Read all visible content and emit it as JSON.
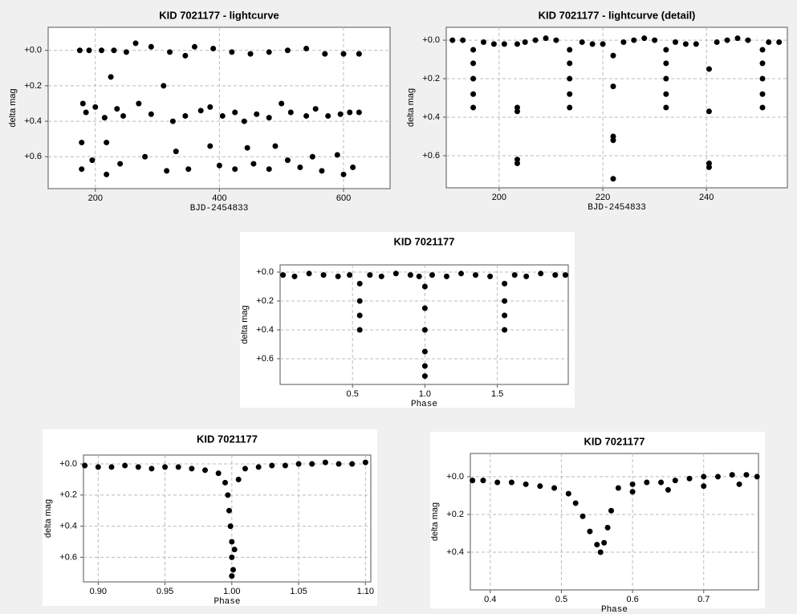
{
  "chart_data": [
    {
      "type": "scatter",
      "title": "KID 7021177 - lightcurve",
      "xlabel": "BJD-2454833",
      "ylabel": "delta mag",
      "color": "#000000",
      "grid": true,
      "yinvert": true,
      "xlim": [
        124,
        675
      ],
      "ylim": [
        -0.13,
        0.78
      ],
      "xticks": [
        200,
        400,
        600
      ],
      "yticks": [
        {
          "value": 0,
          "label": "+0.0"
        },
        {
          "value": 0.2,
          "label": "+0.2"
        },
        {
          "value": 0.4,
          "label": "+0.4"
        },
        {
          "value": 0.6,
          "label": "+0.6"
        }
      ],
      "x": [
        175,
        190,
        210,
        230,
        250,
        265,
        290,
        320,
        345,
        360,
        390,
        420,
        450,
        480,
        510,
        540,
        570,
        600,
        625,
        180,
        185,
        200,
        215,
        225,
        235,
        245,
        270,
        290,
        310,
        325,
        345,
        370,
        385,
        405,
        425,
        440,
        460,
        480,
        500,
        515,
        540,
        555,
        575,
        595,
        610,
        625,
        178,
        178,
        195,
        218,
        218,
        240,
        280,
        315,
        330,
        350,
        385,
        400,
        425,
        445,
        455,
        480,
        490,
        510,
        530,
        550,
        565,
        590,
        600,
        615
      ],
      "y": [
        0.0,
        0.0,
        0.0,
        0.0,
        0.01,
        -0.04,
        -0.02,
        0.01,
        0.03,
        -0.02,
        -0.01,
        0.01,
        0.02,
        0.01,
        0.0,
        -0.01,
        0.02,
        0.02,
        0.02,
        0.3,
        0.35,
        0.32,
        0.38,
        0.15,
        0.33,
        0.37,
        0.3,
        0.36,
        0.2,
        0.4,
        0.37,
        0.34,
        0.32,
        0.37,
        0.35,
        0.4,
        0.36,
        0.38,
        0.3,
        0.35,
        0.37,
        0.33,
        0.37,
        0.36,
        0.35,
        0.35,
        0.52,
        0.67,
        0.62,
        0.52,
        0.7,
        0.64,
        0.6,
        0.68,
        0.57,
        0.67,
        0.54,
        0.65,
        0.67,
        0.55,
        0.64,
        0.67,
        0.54,
        0.62,
        0.66,
        0.6,
        0.68,
        0.59,
        0.7,
        0.66
      ]
    },
    {
      "type": "scatter",
      "title": "KID 7021177 - lightcurve (detail)",
      "xlabel": "BJD-2454833",
      "ylabel": "delta mag",
      "color": "#000000",
      "grid": true,
      "yinvert": true,
      "xlim": [
        189.8,
        255.6
      ],
      "ylim": [
        -0.067,
        0.767
      ],
      "xticks": [
        200,
        220,
        240
      ],
      "yticks": [
        {
          "value": 0,
          "label": "+0.0"
        },
        {
          "value": 0.2,
          "label": "+0.2"
        },
        {
          "value": 0.4,
          "label": "+0.4"
        },
        {
          "value": 0.6,
          "label": "+0.6"
        }
      ],
      "x": [
        191,
        193,
        197,
        199,
        201,
        205,
        207,
        209,
        211,
        216,
        218,
        220,
        224,
        226,
        228,
        230,
        234,
        236,
        238,
        242,
        244,
        246,
        248,
        252,
        254,
        195,
        195,
        195,
        195,
        195,
        213.6,
        213.6,
        213.6,
        213.6,
        213.6,
        232.2,
        232.2,
        232.2,
        232.2,
        232.2,
        250.8,
        250.8,
        250.8,
        250.8,
        250.8,
        203.5,
        203.5,
        203.5,
        203.5,
        203.5,
        222,
        222,
        222,
        222,
        222,
        240.5,
        240.5,
        240.5,
        240.5
      ],
      "y": [
        0.0,
        0.0,
        0.01,
        0.02,
        0.02,
        0.01,
        0.0,
        -0.01,
        0.0,
        0.01,
        0.02,
        0.02,
        0.01,
        0.0,
        -0.01,
        0.0,
        0.01,
        0.02,
        0.02,
        0.01,
        0.0,
        -0.01,
        0.0,
        0.01,
        0.01,
        0.05,
        0.12,
        0.2,
        0.28,
        0.35,
        0.05,
        0.12,
        0.2,
        0.28,
        0.35,
        0.05,
        0.12,
        0.2,
        0.28,
        0.35,
        0.05,
        0.12,
        0.2,
        0.28,
        0.35,
        0.02,
        0.35,
        0.37,
        0.62,
        0.64,
        0.08,
        0.24,
        0.5,
        0.52,
        0.72,
        0.15,
        0.37,
        0.64,
        0.66
      ]
    },
    {
      "type": "scatter",
      "title": "KID 7021177",
      "xlabel": "Phase",
      "ylabel": "delta mag",
      "color": "#000000",
      "grid": true,
      "yinvert": true,
      "xlim": [
        0.0,
        1.99
      ],
      "ylim": [
        -0.05,
        0.778
      ],
      "xticks": [
        0.5,
        {
          "value": 1,
          "label": "1.0"
        },
        1.5
      ],
      "yticks": [
        {
          "value": 0,
          "label": "+0.0"
        },
        {
          "value": 0.2,
          "label": "+0.2"
        },
        {
          "value": 0.4,
          "label": "+0.4"
        },
        {
          "value": 0.6,
          "label": "+0.6"
        }
      ],
      "x": [
        0.02,
        0.1,
        0.2,
        0.3,
        0.4,
        0.48,
        0.62,
        0.7,
        0.8,
        0.9,
        0.96,
        1.05,
        1.15,
        1.25,
        1.35,
        1.45,
        1.62,
        1.7,
        1.8,
        1.9,
        1.97,
        0.55,
        0.55,
        0.55,
        0.55,
        1.0,
        1.0,
        1.0,
        1.0,
        1.0,
        1.0,
        1.55,
        1.55,
        1.55,
        1.55
      ],
      "y": [
        0.02,
        0.03,
        0.01,
        0.02,
        0.03,
        0.02,
        0.02,
        0.03,
        0.01,
        0.02,
        0.03,
        0.02,
        0.03,
        0.01,
        0.02,
        0.03,
        0.02,
        0.03,
        0.01,
        0.02,
        0.02,
        0.08,
        0.2,
        0.3,
        0.4,
        0.1,
        0.25,
        0.4,
        0.55,
        0.65,
        0.72,
        0.08,
        0.2,
        0.3,
        0.4
      ]
    },
    {
      "type": "scatter",
      "title": "KID 7021177",
      "xlabel": "Phase",
      "ylabel": "delta mag",
      "color": "#000000",
      "grid": true,
      "yinvert": true,
      "xlim": [
        0.889,
        1.104
      ],
      "ylim": [
        -0.057,
        0.758
      ],
      "xticks": [
        {
          "value": 0.9,
          "label": "0.90"
        },
        {
          "value": 0.95,
          "label": "0.95"
        },
        {
          "value": 1,
          "label": "1.00"
        },
        {
          "value": 1.05,
          "label": "1.05"
        },
        {
          "value": 1.1,
          "label": "1.10"
        }
      ],
      "yticks": [
        {
          "value": 0,
          "label": "+0.0"
        },
        {
          "value": 0.2,
          "label": "+0.2"
        },
        {
          "value": 0.4,
          "label": "+0.4"
        },
        {
          "value": 0.6,
          "label": "+0.6"
        }
      ],
      "x": [
        0.89,
        0.9,
        0.91,
        0.92,
        0.93,
        0.94,
        0.95,
        0.96,
        0.97,
        0.98,
        0.99,
        0.995,
        1.005,
        1.01,
        1.02,
        1.03,
        1.04,
        1.05,
        1.06,
        1.07,
        1.08,
        1.09,
        1.1,
        0.997,
        0.998,
        0.999,
        1.0,
        1.0,
        1.001,
        1.002,
        1.0
      ],
      "y": [
        0.01,
        0.02,
        0.02,
        0.01,
        0.02,
        0.03,
        0.02,
        0.02,
        0.03,
        0.04,
        0.06,
        0.12,
        0.1,
        0.03,
        0.02,
        0.01,
        0.01,
        0.0,
        0.0,
        -0.01,
        0.0,
        0.0,
        -0.01,
        0.2,
        0.3,
        0.4,
        0.5,
        0.6,
        0.68,
        0.55,
        0.72
      ]
    },
    {
      "type": "scatter",
      "title": "KID 7021177",
      "xlabel": "Phase",
      "ylabel": "delta mag",
      "color": "#000000",
      "grid": true,
      "yinvert": true,
      "xlim": [
        0.372,
        0.777
      ],
      "ylim": [
        -0.123,
        0.6
      ],
      "xticks": [
        0.4,
        0.5,
        0.6,
        0.7
      ],
      "yticks": [
        {
          "value": 0,
          "label": "+0.0"
        },
        {
          "value": 0.2,
          "label": "+0.2"
        },
        {
          "value": 0.4,
          "label": "+0.4"
        }
      ],
      "x": [
        0.375,
        0.39,
        0.41,
        0.43,
        0.45,
        0.47,
        0.49,
        0.51,
        0.52,
        0.53,
        0.54,
        0.55,
        0.555,
        0.56,
        0.565,
        0.57,
        0.58,
        0.6,
        0.62,
        0.64,
        0.66,
        0.68,
        0.7,
        0.72,
        0.74,
        0.76,
        0.775,
        0.6,
        0.65,
        0.7,
        0.75
      ],
      "y": [
        0.02,
        0.02,
        0.03,
        0.03,
        0.04,
        0.05,
        0.06,
        0.09,
        0.14,
        0.21,
        0.29,
        0.36,
        0.4,
        0.35,
        0.27,
        0.18,
        0.06,
        0.04,
        0.03,
        0.03,
        0.02,
        0.01,
        0.0,
        0.0,
        -0.01,
        -0.01,
        0.0,
        0.08,
        0.07,
        0.05,
        0.04
      ]
    }
  ]
}
